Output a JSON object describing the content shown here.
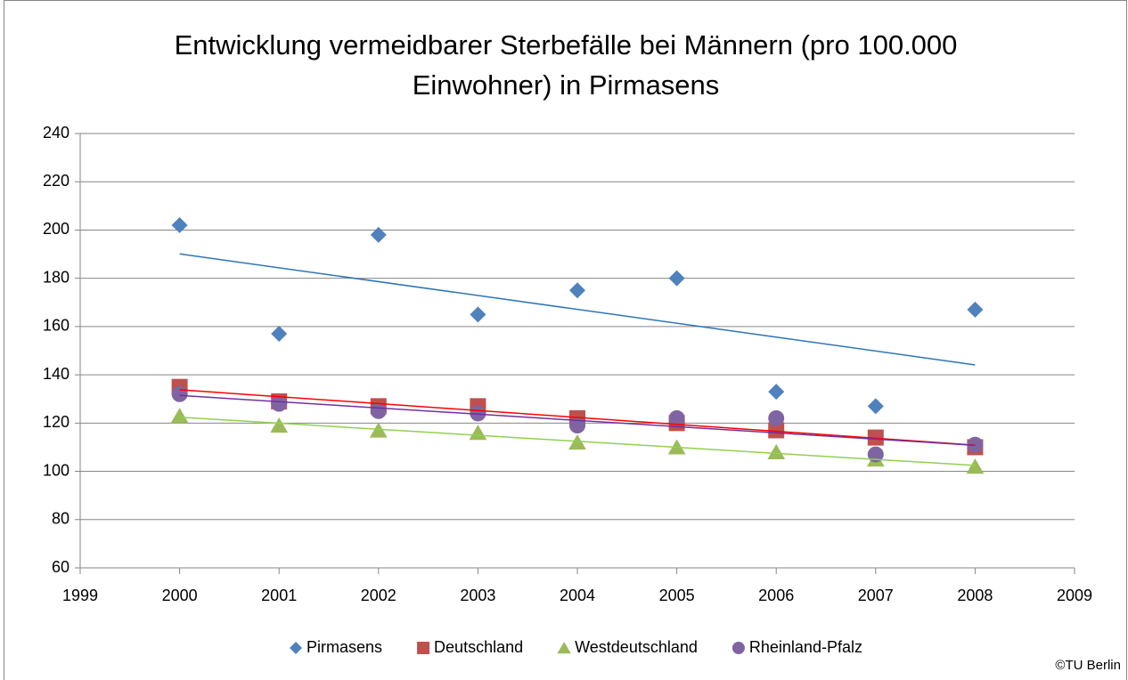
{
  "chart_data": {
    "type": "scatter",
    "title": "Entwicklung vermeidbarer Sterbefälle bei Männern (pro 100.000 Einwohner) in Pirmasens",
    "x": [
      2000,
      2001,
      2002,
      2003,
      2004,
      2005,
      2006,
      2007,
      2008
    ],
    "series": [
      {
        "name": "Pirmasens",
        "color": "#4f81bd",
        "marker": "diamond",
        "trend_color": "#2e75b6",
        "values": [
          202,
          157,
          198,
          165,
          175,
          180,
          133,
          127,
          167
        ]
      },
      {
        "name": "Deutschland",
        "color": "#c0504d",
        "marker": "square",
        "trend_color": "#ff0000",
        "values": [
          135,
          129,
          127,
          127,
          122,
          120,
          117,
          114,
          110
        ]
      },
      {
        "name": "Westdeutschland",
        "color": "#9bbb59",
        "marker": "triangle",
        "trend_color": "#92d050",
        "values": [
          123,
          119,
          117,
          116,
          112,
          110,
          108,
          105,
          102
        ]
      },
      {
        "name": "Rheinland-Pfalz",
        "color": "#8064a2",
        "marker": "circle",
        "trend_color": "#7030a0",
        "values": [
          132,
          128,
          125,
          124,
          119,
          122,
          122,
          107,
          111
        ]
      }
    ],
    "trendline": true,
    "xlim": [
      1999,
      2009
    ],
    "xticks": [
      1999,
      2000,
      2001,
      2002,
      2003,
      2004,
      2005,
      2006,
      2007,
      2008,
      2009
    ],
    "ylim": [
      60,
      240
    ],
    "yticks": [
      60,
      80,
      100,
      120,
      140,
      160,
      180,
      200,
      220,
      240
    ],
    "grid": true,
    "legend": "bottom",
    "annotation": "©TU Berlin"
  }
}
